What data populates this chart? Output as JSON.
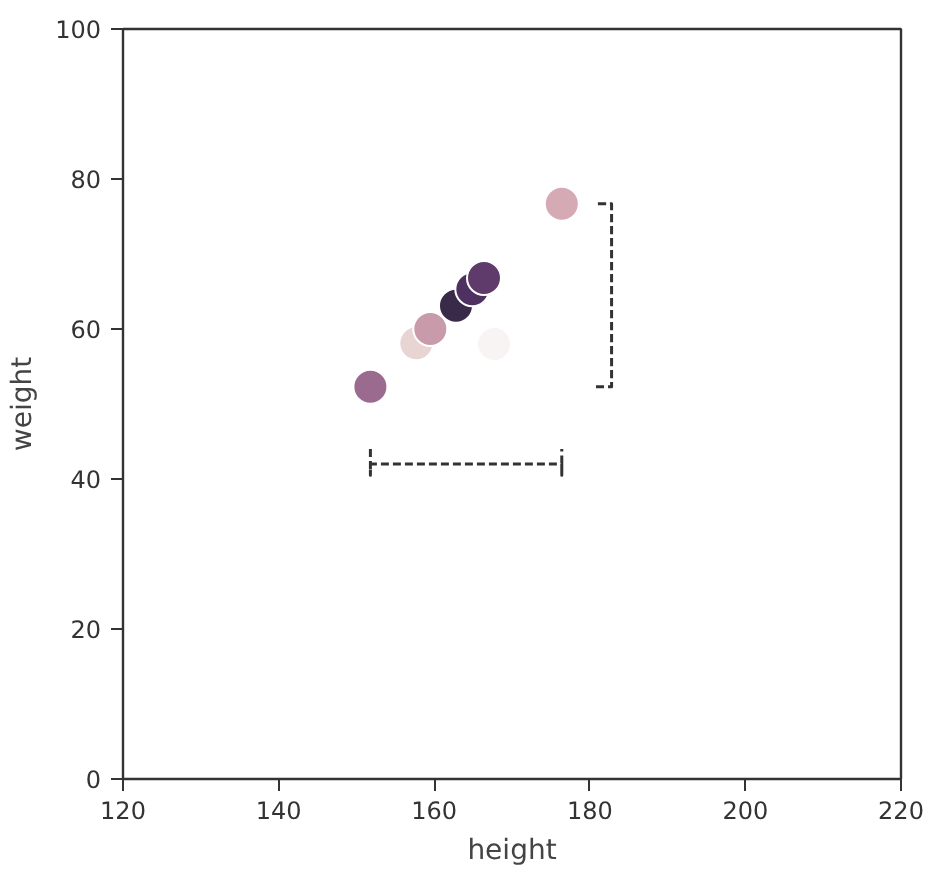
{
  "chart_data": {
    "type": "scatter",
    "xlabel": "height",
    "ylabel": "weight",
    "xlim": [
      120,
      220
    ],
    "ylim": [
      0,
      100
    ],
    "xticks": [
      120,
      140,
      160,
      180,
      200,
      220
    ],
    "yticks": [
      0,
      20,
      40,
      60,
      80,
      100
    ],
    "grid": false,
    "series": [
      {
        "marker": "circle",
        "x": [
          151.8,
          157.7,
          159.5,
          162.8,
          164.9,
          166.4,
          167.7,
          176.4
        ],
        "values": [
          52.3,
          58.1,
          60.0,
          63.1,
          65.3,
          66.8,
          58.0,
          76.7
        ],
        "colors": [
          "#9b6a8f",
          "#e8d4d2",
          "#c99aa9",
          "#3a2a4a",
          "#4e3160",
          "#5e3b6a",
          "#f8f4f4",
          "#d6aab5"
        ]
      },
      {
        "type": "line",
        "marker": "none",
        "line_style": "dashed",
        "color": "#333333",
        "x": [
          151.8,
          151.8,
          151.8,
          176.4,
          176.4,
          176.4
        ],
        "values": [
          44,
          40.5,
          42,
          42,
          40.5,
          44
        ]
      },
      {
        "type": "line",
        "marker": "none",
        "line_style": "dashed",
        "color": "#333333",
        "x": [
          180.8,
          182.8,
          182.8,
          180.8,
          182.8,
          182.8
        ],
        "values": [
          52.3,
          52.3,
          76.7,
          76.7,
          76.7,
          52.3
        ]
      }
    ]
  }
}
